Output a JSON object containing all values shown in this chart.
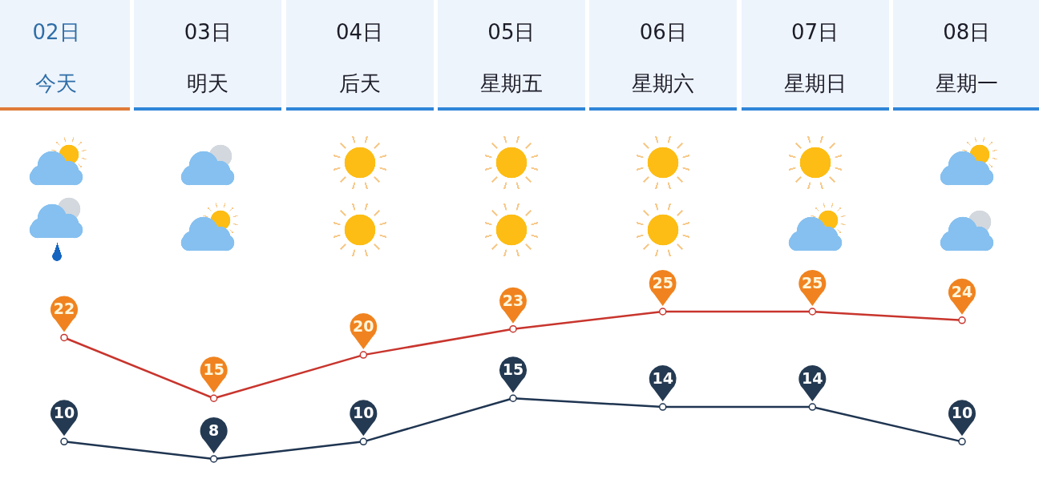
{
  "chart_data": {
    "type": "line",
    "categories": [
      "02日今天",
      "03日明天",
      "04日后天",
      "05日星期五",
      "06日星期六",
      "07日星期日",
      "08日星期一"
    ],
    "series": [
      {
        "color": "#c8352d",
        "values": [
          22,
          15,
          20,
          23,
          25,
          25,
          24
        ]
      },
      {
        "color": "#1f3551",
        "values": [
          10,
          8,
          10,
          15,
          14,
          14,
          10
        ]
      }
    ],
    "tick_labels": "x",
    "data_labels": true,
    "marker": "circle"
  }
}
